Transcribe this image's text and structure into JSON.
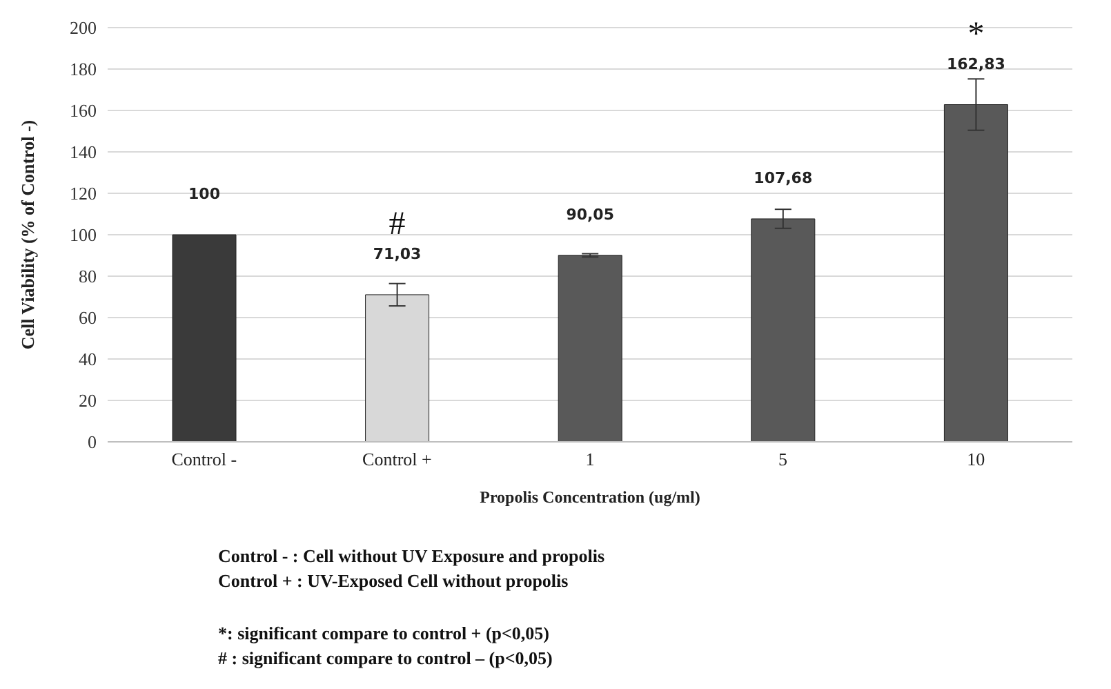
{
  "chart_data": {
    "type": "bar",
    "ylabel": "Cell Viability  (% of Control -)",
    "xlabel": "Propolis  Concentration  (ug/ml)",
    "categories": [
      "Control -",
      "Control +",
      "1",
      "5",
      "10"
    ],
    "values": [
      100,
      71.03,
      90.05,
      107.68,
      162.83
    ],
    "colors": [
      "#3a3a3a",
      "#d8d8d8",
      "#595959",
      "#595959",
      "#595959"
    ],
    "errors": [
      null,
      5.4,
      0.8,
      4.6,
      12.4
    ],
    "value_labels": [
      "100",
      "71,03",
      "90,05",
      "107,68",
      "162,83"
    ],
    "ylim": [
      0,
      200
    ],
    "yticks": [
      0,
      20,
      40,
      60,
      80,
      100,
      120,
      140,
      160,
      180,
      200
    ],
    "grid": "y",
    "legend": false,
    "annotations": [
      "#",
      "*",
      "Control - : Cell without UV Exposure and propolis",
      "Control + : UV-Exposed Cell without propolis",
      "*: significant compare to control + (p<0,05)",
      "# : significant compare to control – (p<0,05)"
    ]
  }
}
